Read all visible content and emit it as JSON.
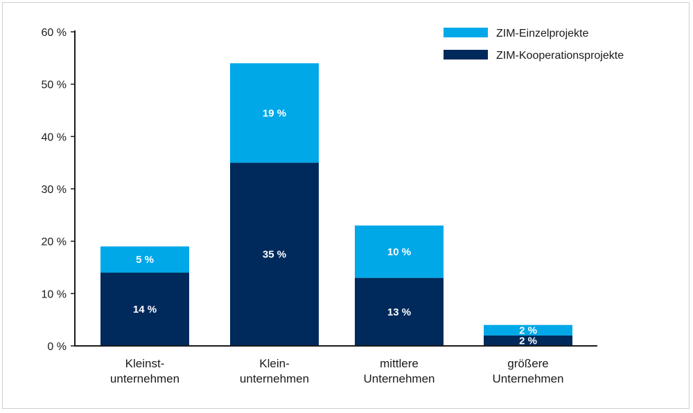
{
  "chart_data": {
    "type": "bar",
    "stacked": true,
    "categories": [
      [
        "Kleinst-",
        "unternehmen"
      ],
      [
        "Klein-",
        "unternehmen"
      ],
      [
        "mittlere",
        "Unternehmen"
      ],
      [
        "größere",
        "Unternehmen"
      ]
    ],
    "series": [
      {
        "name": "ZIM-Kooperationsprojekte",
        "color": "#002a5c",
        "values": [
          14,
          35,
          13,
          2
        ],
        "labels": [
          "14 %",
          "35 %",
          "13 %",
          "2 %"
        ]
      },
      {
        "name": "ZIM-Einzelprojekte",
        "color": "#00a8e8",
        "values": [
          5,
          19,
          10,
          2
        ],
        "labels": [
          "5 %",
          "19 %",
          "10 %",
          "2 %"
        ]
      }
    ],
    "ylim": [
      0,
      60
    ],
    "yticks": [
      0,
      10,
      20,
      30,
      40,
      50,
      60
    ],
    "ytick_labels": [
      "0 %",
      "10 %",
      "20 %",
      "30 %",
      "40 %",
      "50 %",
      "60 %"
    ],
    "legend": {
      "placement": "top-right",
      "order": [
        "ZIM-Einzelprojekte",
        "ZIM-Kooperationsprojekte"
      ]
    },
    "grid": false
  }
}
